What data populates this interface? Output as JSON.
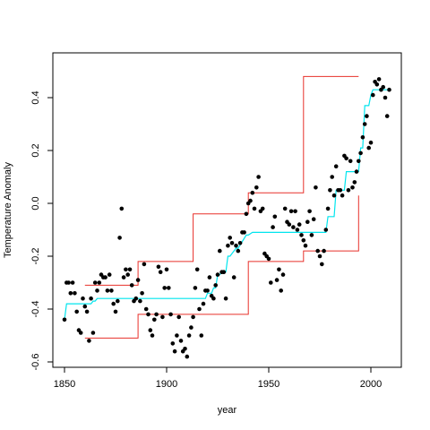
{
  "chart_data": {
    "type": "scatter",
    "title": "",
    "xlabel": "year",
    "ylabel": "Temperature Anomaly",
    "xlim": [
      1850,
      2010
    ],
    "ylim": [
      -0.6,
      0.53
    ],
    "grid": false,
    "legend": "none",
    "xticks": [
      {
        "value": 1850,
        "label": "1850"
      },
      {
        "value": 1900,
        "label": "1900"
      },
      {
        "value": 1950,
        "label": "1950"
      },
      {
        "value": 2000,
        "label": "2000"
      }
    ],
    "yticks": [
      {
        "value": -0.6,
        "label": "-0.6"
      },
      {
        "value": -0.4,
        "label": "-0.4"
      },
      {
        "value": -0.2,
        "label": "-0.2"
      },
      {
        "value": 0.0,
        "label": "0.0"
      },
      {
        "value": 0.2,
        "label": "0.2"
      },
      {
        "value": 0.4,
        "label": "0.4"
      }
    ],
    "colors": {
      "points": "#000000",
      "fit": "#00e5ee",
      "bands": "#e8302a"
    },
    "points": {
      "x": [
        1850,
        1851,
        1852,
        1853,
        1854,
        1855,
        1856,
        1857,
        1858,
        1859,
        1860,
        1861,
        1862,
        1863,
        1864,
        1865,
        1866,
        1867,
        1868,
        1869,
        1870,
        1871,
        1872,
        1873,
        1874,
        1875,
        1876,
        1877,
        1878,
        1879,
        1880,
        1881,
        1882,
        1883,
        1884,
        1885,
        1886,
        1887,
        1888,
        1889,
        1890,
        1891,
        1892,
        1893,
        1894,
        1895,
        1896,
        1897,
        1898,
        1899,
        1900,
        1901,
        1902,
        1903,
        1904,
        1905,
        1906,
        1907,
        1908,
        1909,
        1910,
        1911,
        1912,
        1913,
        1914,
        1915,
        1916,
        1917,
        1918,
        1919,
        1920,
        1921,
        1922,
        1923,
        1924,
        1925,
        1926,
        1927,
        1928,
        1929,
        1930,
        1931,
        1932,
        1933,
        1934,
        1935,
        1936,
        1937,
        1938,
        1939,
        1940,
        1941,
        1942,
        1943,
        1944,
        1945,
        1946,
        1947,
        1948,
        1949,
        1950,
        1951,
        1952,
        1953,
        1954,
        1955,
        1956,
        1957,
        1958,
        1959,
        1960,
        1961,
        1962,
        1963,
        1964,
        1965,
        1966,
        1967,
        1968,
        1969,
        1970,
        1971,
        1972,
        1973,
        1974,
        1975,
        1976,
        1977,
        1978,
        1979,
        1980,
        1981,
        1982,
        1983,
        1984,
        1985,
        1986,
        1987,
        1988,
        1989,
        1990,
        1991,
        1992,
        1993,
        1994,
        1995,
        1996,
        1997,
        1998,
        1999,
        2000,
        2001,
        2002,
        2003,
        2004,
        2005,
        2006,
        2007,
        2008,
        2009
      ],
      "y": [
        -0.44,
        -0.3,
        -0.3,
        -0.34,
        -0.3,
        -0.34,
        -0.41,
        -0.48,
        -0.49,
        -0.36,
        -0.39,
        -0.41,
        -0.52,
        -0.36,
        -0.49,
        -0.3,
        -0.33,
        -0.3,
        -0.27,
        -0.28,
        -0.28,
        -0.33,
        -0.27,
        -0.33,
        -0.38,
        -0.41,
        -0.37,
        -0.13,
        -0.02,
        -0.28,
        -0.25,
        -0.27,
        -0.25,
        -0.31,
        -0.37,
        -0.36,
        -0.29,
        -0.37,
        -0.34,
        -0.23,
        -0.4,
        -0.42,
        -0.48,
        -0.5,
        -0.44,
        -0.42,
        -0.24,
        -0.26,
        -0.43,
        -0.32,
        -0.25,
        -0.32,
        -0.42,
        -0.53,
        -0.56,
        -0.5,
        -0.43,
        -0.52,
        -0.56,
        -0.55,
        -0.58,
        -0.5,
        -0.47,
        -0.43,
        -0.32,
        -0.25,
        -0.4,
        -0.5,
        -0.38,
        -0.33,
        -0.33,
        -0.28,
        -0.35,
        -0.36,
        -0.31,
        -0.27,
        -0.18,
        -0.26,
        -0.26,
        -0.36,
        -0.16,
        -0.13,
        -0.15,
        -0.28,
        -0.16,
        -0.18,
        -0.15,
        -0.11,
        -0.11,
        -0.04,
        0.0,
        0.01,
        0.04,
        -0.02,
        0.06,
        0.1,
        -0.03,
        -0.02,
        -0.19,
        -0.2,
        -0.21,
        -0.3,
        -0.09,
        -0.05,
        -0.29,
        -0.25,
        -0.33,
        -0.27,
        -0.02,
        -0.07,
        -0.08,
        -0.03,
        -0.09,
        -0.03,
        -0.1,
        -0.08,
        -0.12,
        -0.14,
        -0.16,
        -0.07,
        -0.03,
        -0.12,
        -0.06,
        0.06,
        -0.18,
        -0.2,
        -0.23,
        -0.18,
        -0.1,
        -0.02,
        0.05,
        0.1,
        0.03,
        0.14,
        0.05,
        0.05,
        0.03,
        0.18,
        0.17,
        0.05,
        0.16,
        0.06,
        0.08,
        0.12,
        0.16,
        0.19,
        0.25,
        0.3,
        0.33,
        0.21,
        0.23,
        0.41,
        0.46,
        0.45,
        0.47,
        0.43,
        0.44,
        0.4,
        0.33,
        0.43
      ]
    },
    "fit_step": {
      "x": [
        1850,
        1851,
        1863,
        1864,
        1865,
        1866,
        1869,
        1870,
        1876,
        1877,
        1883,
        1884,
        1884,
        1885,
        1919,
        1920,
        1922,
        1923,
        1924,
        1925,
        1926,
        1927,
        1929,
        1930,
        1931,
        1934,
        1935,
        1939,
        1940,
        1942,
        1943,
        1978,
        1979,
        1982,
        1983,
        1987,
        1988,
        1994,
        1995,
        1996,
        1997,
        1999,
        2000,
        2001,
        2009
      ],
      "y": [
        -0.44,
        -0.38,
        -0.38,
        -0.37,
        -0.37,
        -0.36,
        -0.36,
        -0.36,
        -0.36,
        -0.36,
        -0.36,
        -0.36,
        -0.36,
        -0.36,
        -0.36,
        -0.34,
        -0.34,
        -0.32,
        -0.32,
        -0.27,
        -0.27,
        -0.26,
        -0.26,
        -0.2,
        -0.2,
        -0.17,
        -0.17,
        -0.12,
        -0.12,
        -0.11,
        -0.11,
        -0.11,
        -0.05,
        -0.05,
        0.05,
        0.05,
        0.12,
        0.12,
        0.21,
        0.21,
        0.37,
        0.37,
        0.41,
        0.43,
        0.43
      ]
    },
    "upper_band": {
      "x": [
        1860,
        1886,
        1886,
        1913,
        1913,
        1940,
        1940,
        1967,
        1967,
        1994
      ],
      "y": [
        -0.31,
        -0.31,
        -0.22,
        -0.22,
        -0.04,
        -0.04,
        0.04,
        0.04,
        0.48,
        0.48
      ]
    },
    "lower_band": {
      "x": [
        1860,
        1886,
        1886,
        1940,
        1940,
        1967,
        1967,
        1994,
        1994
      ],
      "y": [
        -0.51,
        -0.51,
        -0.42,
        -0.42,
        -0.22,
        -0.22,
        -0.18,
        -0.18,
        0.03
      ]
    }
  }
}
